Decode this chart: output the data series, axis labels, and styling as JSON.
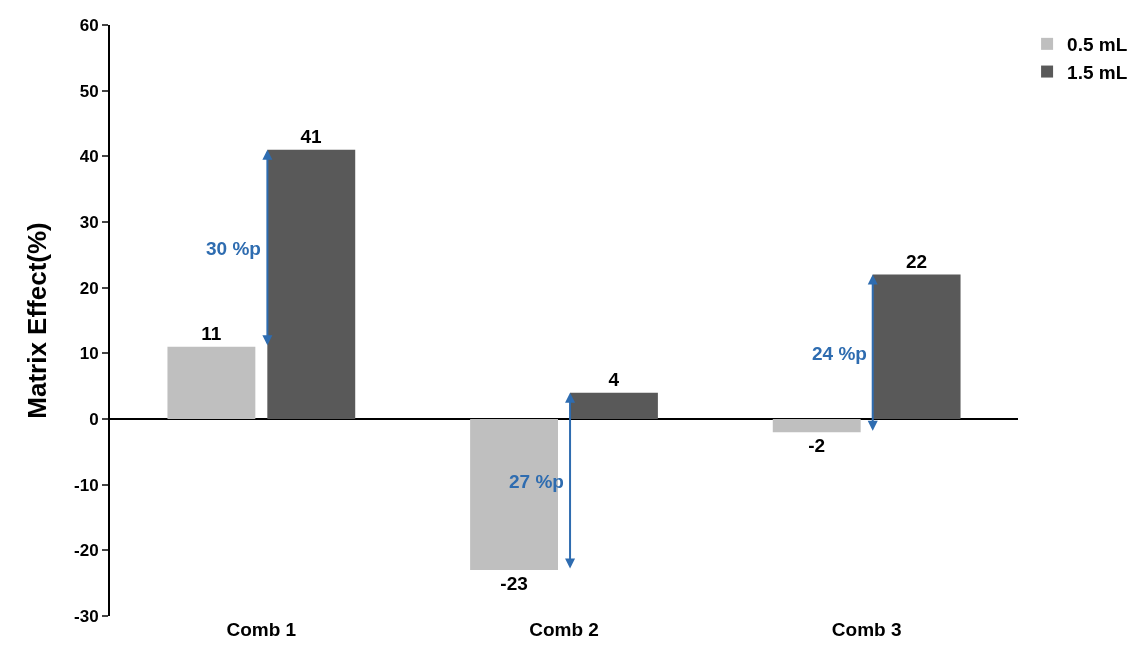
{
  "chart_data": {
    "type": "bar",
    "ylabel": "Matrix Effect(%)",
    "categories": [
      "Comb 1",
      "Comb 2",
      "Comb 3"
    ],
    "series": [
      {
        "name": "0.5 mL",
        "color": "#bfbfbf",
        "values": [
          11,
          -23,
          -2
        ]
      },
      {
        "name": "1.5 mL",
        "color": "#595959",
        "values": [
          41,
          4,
          22
        ]
      }
    ],
    "ylim": [
      -30,
      60
    ],
    "yticks": [
      -30,
      -20,
      -10,
      0,
      10,
      20,
      30,
      40,
      50,
      60
    ],
    "legend": "top right",
    "data_labels": true,
    "annotations": [
      "30 %p",
      "27 %p",
      "24 %p"
    ]
  }
}
